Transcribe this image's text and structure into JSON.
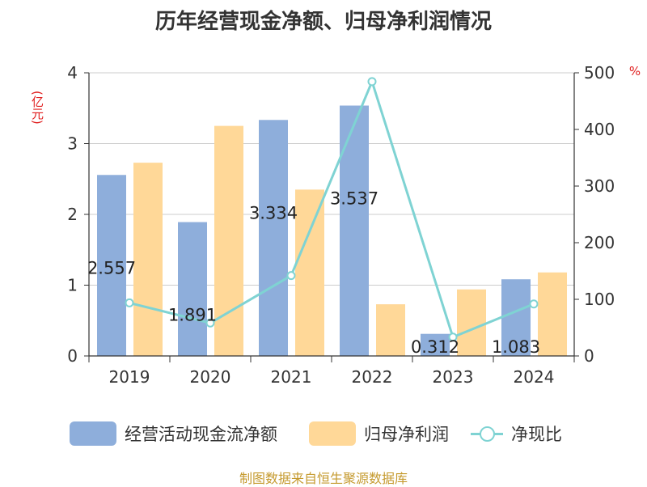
{
  "title": "历年经营现金净额、归母净利润情况",
  "source": "制图数据来自恒生聚源数据库",
  "colors": {
    "blue": "#8eaedb",
    "orange": "#ffd898",
    "line": "#7fd3d3",
    "unit": "#e02020",
    "source": "#c59a2e"
  },
  "chart_data": {
    "type": "bar",
    "categories": [
      "2019",
      "2020",
      "2021",
      "2022",
      "2023",
      "2024"
    ],
    "series": [
      {
        "name": "经营活动现金流净额",
        "type": "bar",
        "axis": "left",
        "color": "#8eaedb",
        "values": [
          2.557,
          1.891,
          3.334,
          3.537,
          0.312,
          1.083
        ]
      },
      {
        "name": "归母净利润",
        "type": "bar",
        "axis": "left",
        "color": "#ffd898",
        "values": [
          2.73,
          3.25,
          2.35,
          0.73,
          0.94,
          1.18
        ]
      },
      {
        "name": "净现比",
        "type": "line",
        "axis": "right",
        "color": "#7fd3d3",
        "values": [
          93.7,
          58.2,
          141.9,
          484.5,
          33.2,
          91.8
        ]
      }
    ],
    "data_labels": [
      "2.557",
      "1.891",
      "3.334",
      "3.537",
      "0.312",
      "1.083"
    ],
    "y_left": {
      "unit": "(亿元)",
      "ylim": [
        0,
        4
      ],
      "ticks": [
        0,
        1,
        2,
        3,
        4
      ]
    },
    "y_right": {
      "unit": "%",
      "ylim": [
        0,
        500
      ],
      "ticks": [
        0,
        100,
        200,
        300,
        400,
        500
      ]
    },
    "grid": true,
    "legend_position": "bottom"
  }
}
